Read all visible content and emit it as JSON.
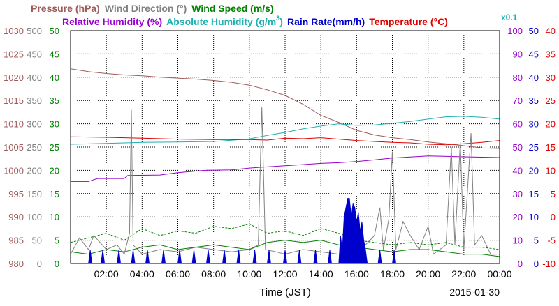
{
  "chart_data": {
    "type": "line",
    "xlabel": "Time (JST)",
    "date": "2015-01-30",
    "x_ticks": [
      "02:00",
      "04:00",
      "06:00",
      "08:00",
      "10:00",
      "12:00",
      "14:00",
      "16:00",
      "18:00",
      "20:00",
      "22:00",
      "00:00"
    ],
    "x_range_hours": [
      0,
      24
    ],
    "grid": true,
    "legend": {
      "row1": [
        {
          "label": "Pressure (hPa)",
          "color": "#a05a5a"
        },
        {
          "label": "Wind Direction (°)",
          "color": "#808080"
        },
        {
          "label": "Wind Speed (m/s)",
          "color": "#008000"
        }
      ],
      "row2": [
        {
          "label": "Relative Humidity (%)",
          "color": "#9900cc"
        },
        {
          "label": "Absolute Humidity (g/m",
          "sup": "3",
          "close": ")",
          "color": "#20b0b0"
        },
        {
          "label": "Rain Rate(mm/h)",
          "color": "#0000cc"
        },
        {
          "label": "Temperature (°C)",
          "color": "#e00000"
        }
      ],
      "scale_note": "x0.1"
    },
    "axes": {
      "pressure": {
        "color": "#a05a5a",
        "ticks": [
          "980",
          "985",
          "990",
          "995",
          "1000",
          "1005",
          "1010",
          "1015",
          "1020",
          "1025",
          "1030"
        ],
        "range": [
          980,
          1030
        ]
      },
      "wind_direction": {
        "color": "#808080",
        "ticks": [
          "0",
          "50",
          "100",
          "150",
          "200",
          "250",
          "300",
          "350",
          "400",
          "450",
          "500"
        ],
        "range": [
          0,
          500
        ]
      },
      "wind_speed": {
        "color": "#008000",
        "ticks": [
          "0",
          "5",
          "10",
          "15",
          "20",
          "25",
          "30",
          "35",
          "40",
          "45",
          "50"
        ],
        "range": [
          0,
          50
        ]
      },
      "relative_humidity": {
        "color": "#9900cc",
        "ticks": [
          "0",
          "10",
          "20",
          "30",
          "40",
          "50",
          "60",
          "70",
          "80",
          "90",
          "100"
        ],
        "range": [
          0,
          100
        ]
      },
      "rain_rate": {
        "color": "#0000cc",
        "ticks": [
          "0",
          "5",
          "10",
          "15",
          "20",
          "25",
          "30",
          "35",
          "40",
          "45",
          "50"
        ],
        "range": [
          0,
          50
        ]
      },
      "temperature": {
        "color": "#e00000",
        "ticks": [
          "-10",
          "-5",
          "0",
          "5",
          "10",
          "15",
          "20",
          "25",
          "30",
          "35",
          "40"
        ],
        "range": [
          -10,
          40
        ]
      }
    },
    "series": [
      {
        "name": "Pressure (hPa)",
        "axis": "pressure",
        "color": "#a05a5a",
        "points": [
          [
            0,
            1021.8
          ],
          [
            1,
            1021.2
          ],
          [
            2,
            1020.8
          ],
          [
            3,
            1020.5
          ],
          [
            4,
            1020.3
          ],
          [
            5,
            1020.0
          ],
          [
            6,
            1019.8
          ],
          [
            7,
            1019.6
          ],
          [
            8,
            1019.3
          ],
          [
            9,
            1018.9
          ],
          [
            10,
            1018.3
          ],
          [
            11,
            1017.3
          ],
          [
            12,
            1016.1
          ],
          [
            13,
            1014.2
          ],
          [
            14,
            1011.8
          ],
          [
            15,
            1010.3
          ],
          [
            16,
            1008.6
          ],
          [
            17,
            1007.6
          ],
          [
            18,
            1007.0
          ],
          [
            19,
            1006.6
          ],
          [
            20,
            1006.1
          ],
          [
            21,
            1005.7
          ],
          [
            22,
            1005.3
          ],
          [
            23,
            1004.8
          ],
          [
            24,
            1004.7
          ]
        ]
      },
      {
        "name": "Absolute Humidity (g/m3) x0.1",
        "axis": "relative_humidity",
        "color": "#20b0b0",
        "points": [
          [
            0,
            51.2
          ],
          [
            2,
            51.6
          ],
          [
            4,
            52.0
          ],
          [
            6,
            52.2
          ],
          [
            8,
            52.4
          ],
          [
            9,
            52.9
          ],
          [
            10,
            53.5
          ],
          [
            11,
            55.0
          ],
          [
            12,
            56.3
          ],
          [
            13,
            57.8
          ],
          [
            14,
            59.0
          ],
          [
            15,
            60.0
          ],
          [
            16,
            59.3
          ],
          [
            17,
            59.5
          ],
          [
            18,
            60.2
          ],
          [
            19,
            61.0
          ],
          [
            20,
            62.0
          ],
          [
            21,
            63.0
          ],
          [
            22,
            63.2
          ],
          [
            23,
            62.8
          ],
          [
            24,
            62.0
          ]
        ]
      },
      {
        "name": "Temperature (°C)",
        "axis": "temperature",
        "color": "#e00000",
        "points": [
          [
            0,
            17.2
          ],
          [
            2,
            17.1
          ],
          [
            4,
            16.9
          ],
          [
            6,
            16.7
          ],
          [
            8,
            16.6
          ],
          [
            10,
            16.6
          ],
          [
            11,
            16.5
          ],
          [
            12,
            16.9
          ],
          [
            13,
            16.8
          ],
          [
            14,
            17.0
          ],
          [
            15,
            16.7
          ],
          [
            16,
            16.4
          ],
          [
            17,
            16.2
          ],
          [
            18,
            16.0
          ],
          [
            19,
            15.9
          ],
          [
            20,
            15.6
          ],
          [
            21,
            15.5
          ],
          [
            22,
            15.7
          ],
          [
            23,
            16.0
          ],
          [
            24,
            16.4
          ]
        ]
      },
      {
        "name": "Relative Humidity (%)",
        "axis": "relative_humidity",
        "color": "#9900cc",
        "points": [
          [
            0,
            35.2
          ],
          [
            1,
            35.2
          ],
          [
            1.5,
            36.5
          ],
          [
            3,
            36.5
          ],
          [
            3.2,
            37.8
          ],
          [
            5,
            38.0
          ],
          [
            6,
            39.0
          ],
          [
            7.5,
            40.0
          ],
          [
            9,
            40.2
          ],
          [
            10,
            41.0
          ],
          [
            11,
            41.5
          ],
          [
            12,
            42.0
          ],
          [
            13,
            42.5
          ],
          [
            14,
            43.0
          ],
          [
            15,
            43.3
          ],
          [
            16,
            43.8
          ],
          [
            17,
            44.5
          ],
          [
            18,
            45.3
          ],
          [
            20,
            46.2
          ],
          [
            22,
            45.8
          ],
          [
            24,
            45.5
          ]
        ]
      },
      {
        "name": "Wind Direction (°)",
        "axis": "wind_direction",
        "color": "#808080",
        "points": [
          [
            0,
            20
          ],
          [
            0.5,
            55
          ],
          [
            1,
            30
          ],
          [
            1.3,
            60
          ],
          [
            2,
            30
          ],
          [
            2.6,
            40
          ],
          [
            3,
            20
          ],
          [
            3.3,
            65
          ],
          [
            3.4,
            330
          ],
          [
            3.5,
            40
          ],
          [
            4,
            20
          ],
          [
            5,
            30
          ],
          [
            6,
            25
          ],
          [
            7,
            35
          ],
          [
            8,
            30
          ],
          [
            9,
            25
          ],
          [
            10,
            30
          ],
          [
            10.5,
            40
          ],
          [
            10.7,
            335
          ],
          [
            10.9,
            30
          ],
          [
            11.5,
            25
          ],
          [
            12,
            20
          ],
          [
            13,
            30
          ],
          [
            14,
            25
          ],
          [
            15,
            20
          ],
          [
            15.5,
            25
          ],
          [
            16,
            20
          ],
          [
            16.5,
            40
          ],
          [
            17,
            60
          ],
          [
            17.3,
            120
          ],
          [
            17.5,
            30
          ],
          [
            17.8,
            95
          ],
          [
            18,
            240
          ],
          [
            18.2,
            30
          ],
          [
            18.6,
            90
          ],
          [
            19,
            60
          ],
          [
            19.5,
            30
          ],
          [
            20,
            80
          ],
          [
            20.3,
            20
          ],
          [
            21,
            40
          ],
          [
            21.3,
            250
          ],
          [
            21.5,
            40
          ],
          [
            21.8,
            260
          ],
          [
            22,
            30
          ],
          [
            22.4,
            280
          ],
          [
            22.6,
            40
          ],
          [
            23,
            60
          ],
          [
            23.5,
            20
          ],
          [
            24,
            20
          ]
        ]
      },
      {
        "name": "Wind Speed (m/s)",
        "axis": "wind_speed",
        "color": "#008000",
        "points": [
          [
            0,
            2.5
          ],
          [
            1,
            2.0
          ],
          [
            2,
            3.0
          ],
          [
            3,
            2.5
          ],
          [
            4,
            3.5
          ],
          [
            5,
            4.0
          ],
          [
            6,
            3.0
          ],
          [
            7,
            3.5
          ],
          [
            8,
            4.0
          ],
          [
            9,
            3.5
          ],
          [
            10,
            3.0
          ],
          [
            11,
            4.5
          ],
          [
            12,
            5.0
          ],
          [
            13,
            4.5
          ],
          [
            14,
            5.0
          ],
          [
            15,
            4.0
          ],
          [
            16,
            3.5
          ],
          [
            17,
            3.0
          ],
          [
            18,
            2.5
          ],
          [
            19,
            3.0
          ],
          [
            20,
            3.0
          ],
          [
            21,
            2.5
          ],
          [
            22,
            2.0
          ],
          [
            23,
            2.0
          ],
          [
            24,
            1.5
          ]
        ]
      },
      {
        "name": "Wind Speed gust (m/s)",
        "axis": "wind_speed",
        "color": "#008000",
        "dashed": true,
        "points": [
          [
            0,
            4.5
          ],
          [
            1,
            5.5
          ],
          [
            2,
            6.5
          ],
          [
            3,
            5.0
          ],
          [
            4,
            7.5
          ],
          [
            5,
            6.0
          ],
          [
            6,
            7.0
          ],
          [
            7,
            6.5
          ],
          [
            8,
            8.0
          ],
          [
            9,
            7.5
          ],
          [
            10,
            8.5
          ],
          [
            11,
            6.5
          ],
          [
            12,
            7.0
          ],
          [
            13,
            6.0
          ],
          [
            14,
            7.5
          ],
          [
            15,
            6.5
          ],
          [
            16,
            5.0
          ],
          [
            17,
            4.5
          ],
          [
            18,
            4.0
          ],
          [
            19,
            4.5
          ],
          [
            20,
            4.0
          ],
          [
            21,
            4.5
          ],
          [
            22,
            3.5
          ],
          [
            23,
            3.5
          ],
          [
            24,
            3.0
          ]
        ]
      },
      {
        "name": "Rain Rate(mm/h)",
        "axis": "rain_rate",
        "color": "#0000cc",
        "fill": true,
        "points": [
          [
            0,
            0
          ],
          [
            1.0,
            0
          ],
          [
            1.1,
            3
          ],
          [
            1.2,
            0
          ],
          [
            1.7,
            0
          ],
          [
            1.8,
            3
          ],
          [
            1.9,
            0
          ],
          [
            2.6,
            0
          ],
          [
            2.7,
            3
          ],
          [
            2.8,
            0
          ],
          [
            3.4,
            0
          ],
          [
            3.5,
            3
          ],
          [
            3.6,
            0
          ],
          [
            4.2,
            0
          ],
          [
            4.3,
            3
          ],
          [
            4.4,
            0
          ],
          [
            5.1,
            0
          ],
          [
            5.2,
            3
          ],
          [
            5.3,
            0
          ],
          [
            6.0,
            0
          ],
          [
            6.1,
            3
          ],
          [
            6.2,
            0
          ],
          [
            6.8,
            0
          ],
          [
            6.9,
            3
          ],
          [
            7.0,
            0
          ],
          [
            7.6,
            0
          ],
          [
            7.7,
            3
          ],
          [
            7.8,
            0
          ],
          [
            8.5,
            0
          ],
          [
            8.6,
            3
          ],
          [
            8.7,
            0
          ],
          [
            9.3,
            0
          ],
          [
            9.4,
            3
          ],
          [
            9.5,
            0
          ],
          [
            10.2,
            0
          ],
          [
            10.3,
            3
          ],
          [
            10.4,
            0
          ],
          [
            11.0,
            0
          ],
          [
            11.1,
            3
          ],
          [
            11.2,
            0
          ],
          [
            11.9,
            0
          ],
          [
            12.0,
            3
          ],
          [
            12.1,
            0
          ],
          [
            12.7,
            0
          ],
          [
            12.8,
            3
          ],
          [
            12.9,
            0
          ],
          [
            13.6,
            0
          ],
          [
            13.7,
            3
          ],
          [
            13.8,
            0
          ],
          [
            14.4,
            0
          ],
          [
            14.5,
            3
          ],
          [
            14.6,
            0
          ],
          [
            15.0,
            0
          ],
          [
            15.1,
            6
          ],
          [
            15.2,
            3
          ],
          [
            15.3,
            10
          ],
          [
            15.4,
            12
          ],
          [
            15.5,
            14
          ],
          [
            15.6,
            14
          ],
          [
            15.7,
            10
          ],
          [
            15.8,
            13
          ],
          [
            15.9,
            12
          ],
          [
            16.0,
            9
          ],
          [
            16.1,
            11
          ],
          [
            16.2,
            7
          ],
          [
            16.3,
            9
          ],
          [
            16.4,
            5
          ],
          [
            16.5,
            3
          ],
          [
            16.6,
            0
          ],
          [
            17.2,
            0
          ],
          [
            17.3,
            3
          ],
          [
            17.4,
            0
          ],
          [
            18.0,
            0
          ],
          [
            18.1,
            3
          ],
          [
            18.2,
            0
          ],
          [
            19.0,
            0
          ]
        ]
      }
    ]
  }
}
